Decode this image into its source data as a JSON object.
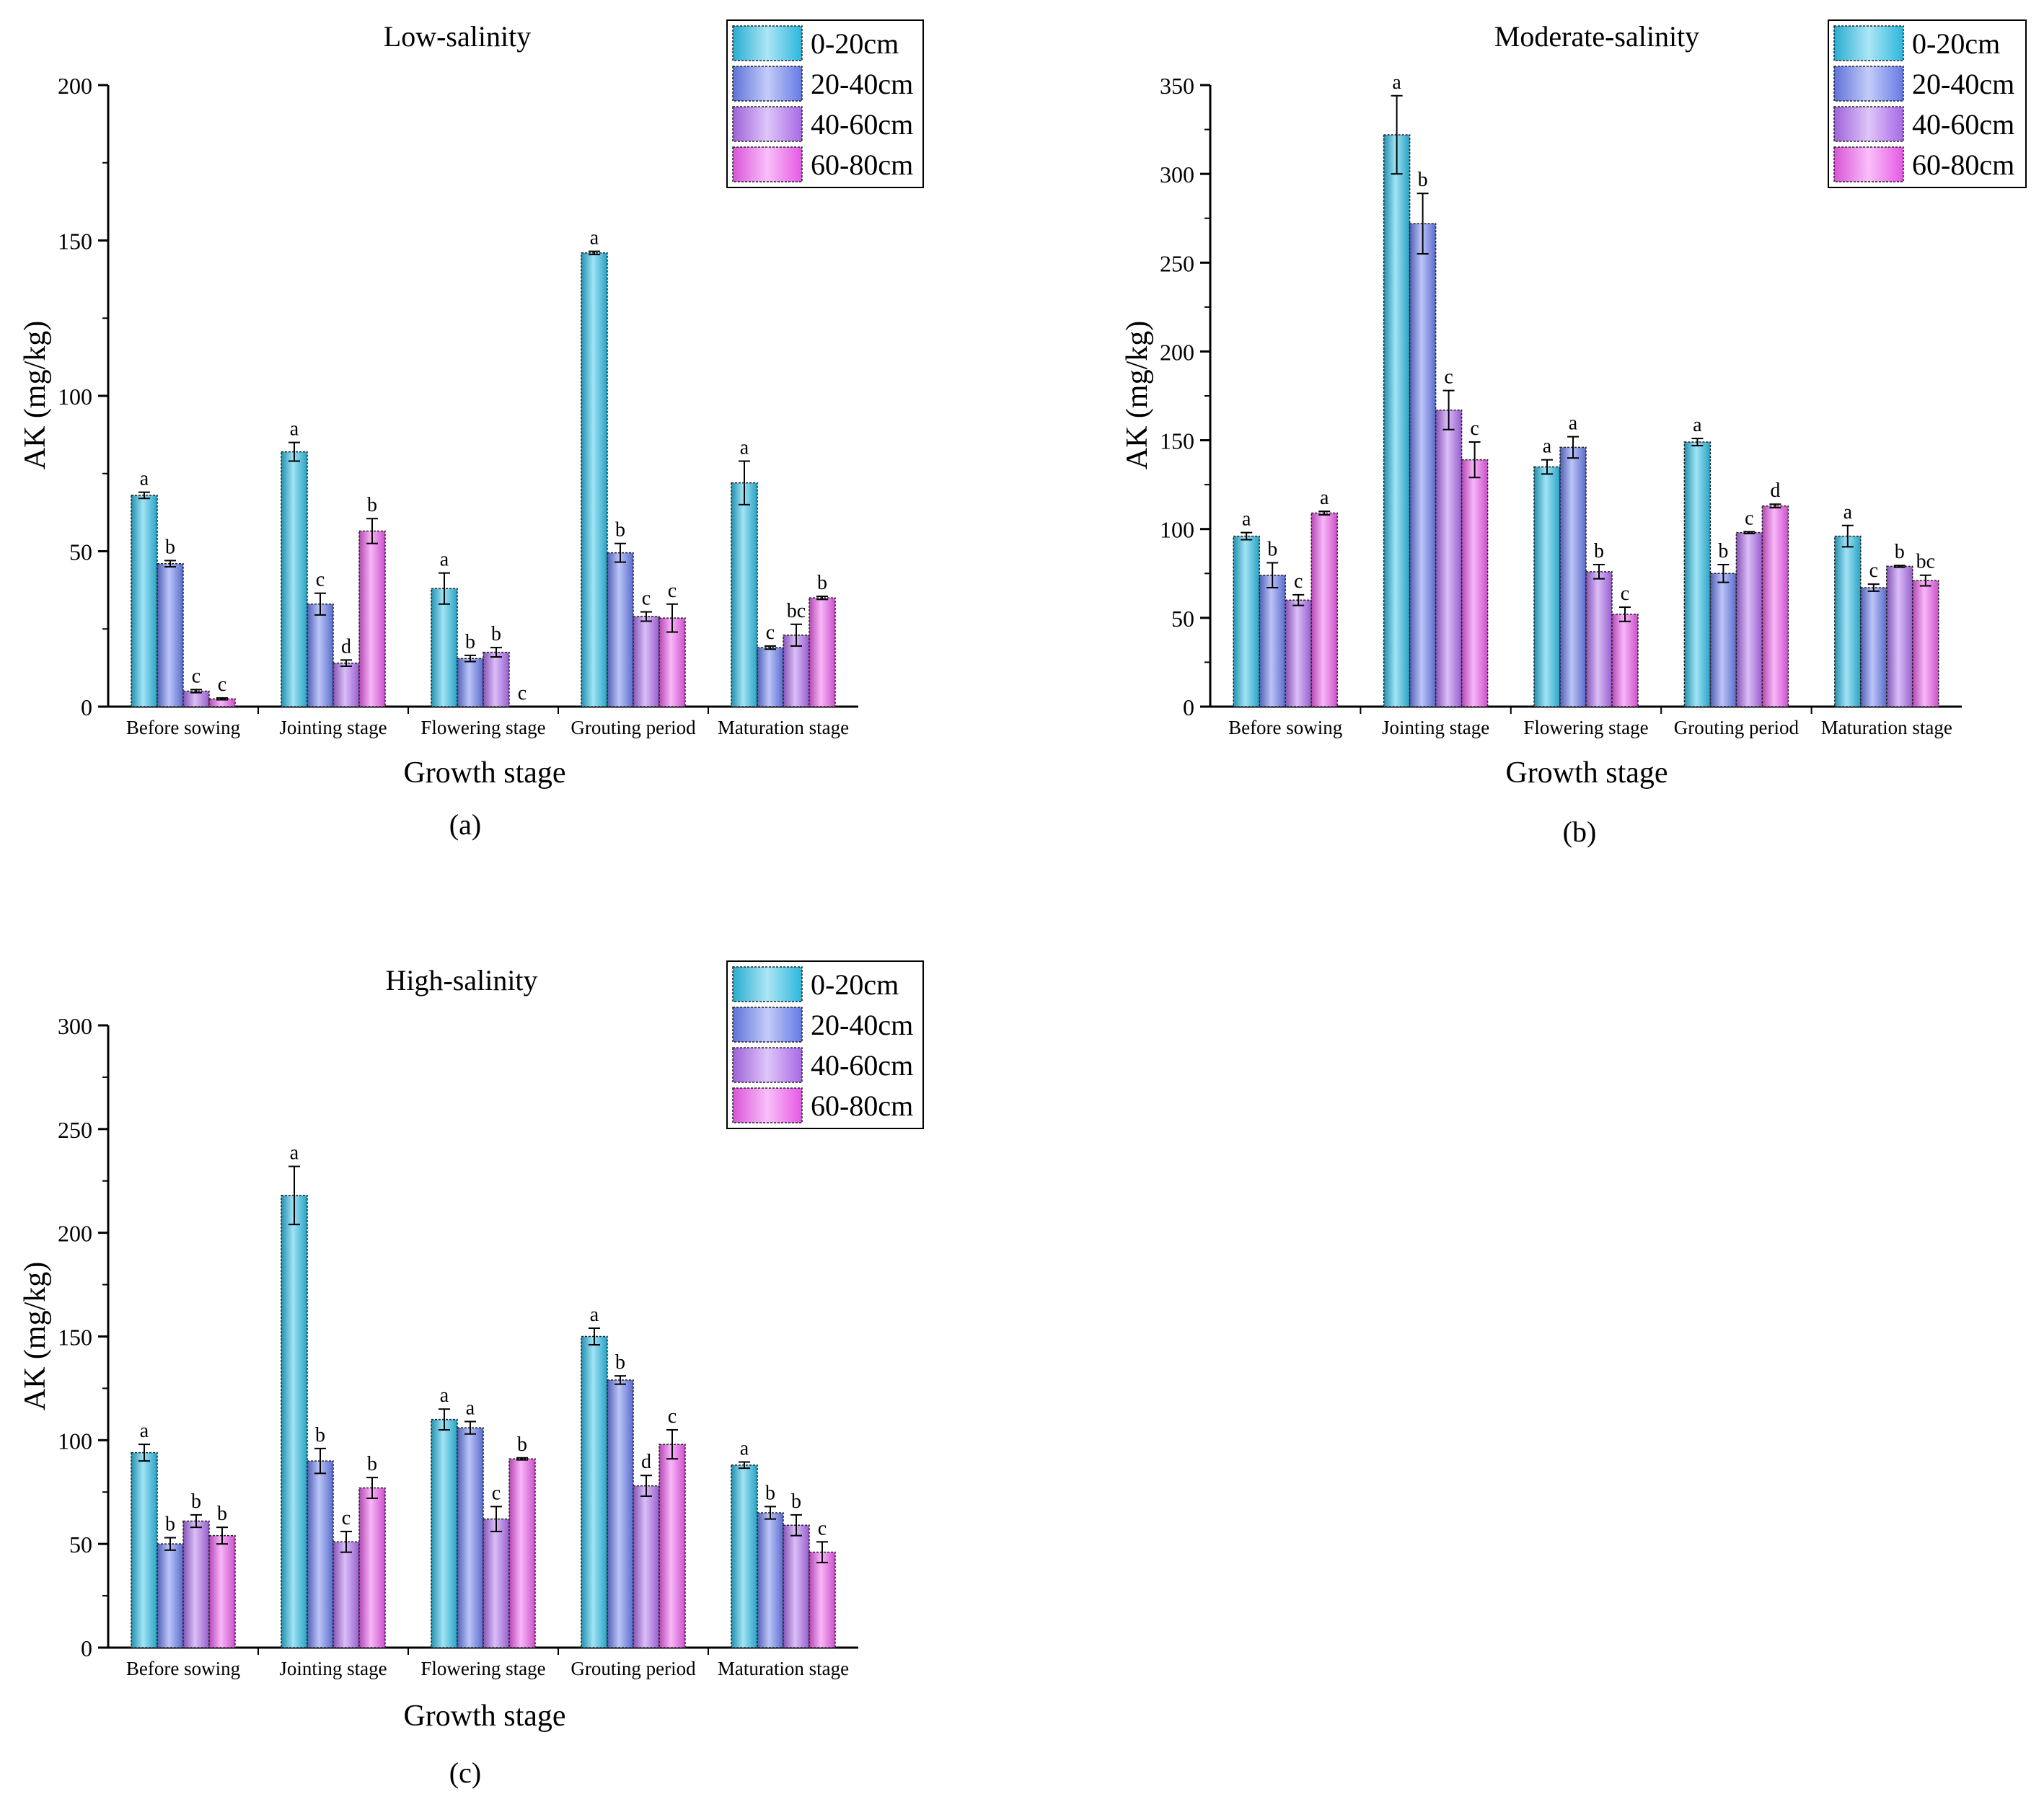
{
  "chart_data": [
    {
      "type": "bar",
      "panel_label": "(a)",
      "title": "Low-salinity",
      "xlabel": "Growth stage",
      "ylabel": "AK (mg/kg)",
      "ylim": [
        0,
        200
      ],
      "yticks": [
        0,
        50,
        100,
        150,
        200
      ],
      "legend_position": "top-right",
      "categories": [
        "Before sowing",
        "Jointing stage",
        "Flowering stage",
        "Grouting period",
        "Maturation stage"
      ],
      "series": [
        {
          "name": "0-20cm",
          "values": [
            68,
            82,
            38,
            146,
            72
          ],
          "errors": [
            1,
            3,
            5,
            0.5,
            7
          ],
          "letters": [
            "a",
            "a",
            "a",
            "a",
            "a"
          ]
        },
        {
          "name": "20-40cm",
          "values": [
            46,
            33,
            15.5,
            49.5,
            19
          ],
          "errors": [
            1,
            3.5,
            1,
            3,
            0.5
          ],
          "letters": [
            "b",
            "c",
            "b",
            "b",
            "c"
          ]
        },
        {
          "name": "40-60cm",
          "values": [
            5,
            14,
            17.5,
            29,
            23
          ],
          "errors": [
            0.5,
            1,
            1.5,
            1.5,
            3.5
          ],
          "letters": [
            "c",
            "d",
            "b",
            "c",
            "bc"
          ]
        },
        {
          "name": "60-80cm",
          "values": [
            2.5,
            56.5,
            0,
            28.5,
            35
          ],
          "errors": [
            0.3,
            4,
            0,
            4.5,
            0.5
          ],
          "letters": [
            "c",
            "b",
            "c",
            "c",
            "b"
          ]
        }
      ]
    },
    {
      "type": "bar",
      "panel_label": "(b)",
      "title": "Moderate-salinity",
      "xlabel": "Growth stage",
      "ylabel": "AK (mg/kg)",
      "ylim": [
        0,
        350
      ],
      "yticks": [
        0,
        50,
        100,
        150,
        200,
        250,
        300,
        350
      ],
      "legend_position": "top-right",
      "categories": [
        "Before sowing",
        "Jointing stage",
        "Flowering stage",
        "Grouting period",
        "Maturation stage"
      ],
      "series": [
        {
          "name": "0-20cm",
          "values": [
            96,
            322,
            135,
            149,
            96
          ],
          "errors": [
            2,
            22,
            4,
            2,
            6
          ],
          "letters": [
            "a",
            "a",
            "a",
            "a",
            "a"
          ]
        },
        {
          "name": "20-40cm",
          "values": [
            74,
            272,
            146,
            75,
            67
          ],
          "errors": [
            7,
            17,
            6,
            5,
            2
          ],
          "letters": [
            "b",
            "b",
            "a",
            "b",
            "c"
          ]
        },
        {
          "name": "40-60cm",
          "values": [
            60,
            167,
            76,
            98,
            79
          ],
          "errors": [
            3,
            11,
            4,
            0.5,
            0.5
          ],
          "letters": [
            "c",
            "c",
            "b",
            "c",
            "b"
          ]
        },
        {
          "name": "60-80cm",
          "values": [
            109,
            139,
            52,
            113,
            71
          ],
          "errors": [
            1,
            10,
            4,
            1,
            3
          ],
          "letters": [
            "a",
            "c",
            "c",
            "d",
            "bc"
          ]
        }
      ]
    },
    {
      "type": "bar",
      "panel_label": "(c)",
      "title": "High-salinity",
      "xlabel": "Growth stage",
      "ylabel": "AK (mg/kg)",
      "ylim": [
        0,
        300
      ],
      "yticks": [
        0,
        50,
        100,
        150,
        200,
        250,
        300
      ],
      "legend_position": "top-right",
      "categories": [
        "Before sowing",
        "Jointing stage",
        "Flowering stage",
        "Grouting period",
        "Maturation stage"
      ],
      "series": [
        {
          "name": "0-20cm",
          "values": [
            94,
            218,
            110,
            150,
            88
          ],
          "errors": [
            4,
            14,
            5,
            4,
            1.5
          ],
          "letters": [
            "a",
            "a",
            "a",
            "a",
            "a"
          ]
        },
        {
          "name": "20-40cm",
          "values": [
            50,
            90,
            106,
            129,
            65
          ],
          "errors": [
            3,
            6,
            3,
            2,
            3
          ],
          "letters": [
            "b",
            "b",
            "a",
            "b",
            "b"
          ]
        },
        {
          "name": "40-60cm",
          "values": [
            61,
            51,
            62,
            78,
            59
          ],
          "errors": [
            3,
            5,
            6,
            5,
            5
          ],
          "letters": [
            "b",
            "c",
            "c",
            "d",
            "b"
          ]
        },
        {
          "name": "60-80cm",
          "values": [
            54,
            77,
            91,
            98,
            46
          ],
          "errors": [
            4,
            5,
            0.5,
            7,
            5
          ],
          "letters": [
            "b",
            "b",
            "b",
            "c",
            "c"
          ]
        }
      ]
    }
  ],
  "series_colors": [
    "#2ec0e8",
    "#6a7ff0",
    "#b06ef0",
    "#f05ef0"
  ]
}
